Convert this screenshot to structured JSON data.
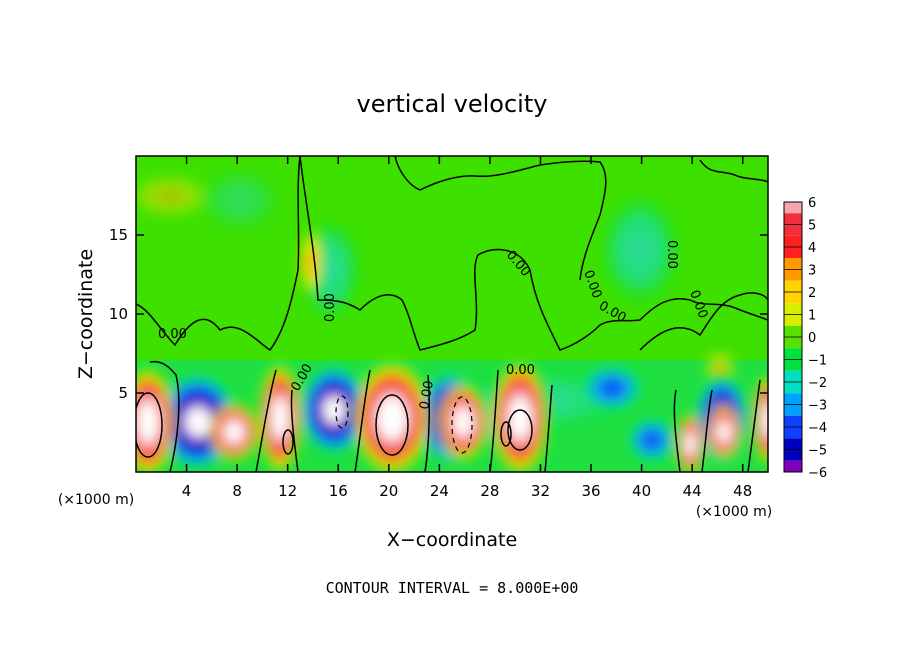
{
  "chart_data": {
    "type": "heatmap",
    "title": "vertical velocity",
    "xlabel": "X−coordinate",
    "ylabel": "Z−coordinate",
    "x_unit_left": "(×1000 m)",
    "x_unit_right": "(×1000 m)",
    "footer": "CONTOUR INTERVAL = 8.000E+00",
    "xlim": [
      0,
      50
    ],
    "ylim": [
      0,
      20
    ],
    "x_ticks": [
      4,
      8,
      12,
      16,
      20,
      24,
      28,
      32,
      36,
      40,
      44,
      48
    ],
    "x_tick_labels": [
      "4",
      "8",
      "12",
      "16",
      "20",
      "24",
      "28",
      "32",
      "36",
      "40",
      "44",
      "48"
    ],
    "y_ticks": [
      5,
      10,
      15
    ],
    "y_tick_labels": [
      "5",
      "10",
      "15"
    ],
    "contour_labels": [
      "0.00",
      "0.00",
      "0.00",
      "0.00",
      "0.00",
      "0.00",
      "0.00",
      "0.00",
      "0.00",
      "0.00"
    ],
    "colorbar": {
      "labels": [
        "6",
        "5",
        "4",
        "3",
        "2",
        "1",
        "0",
        "−1",
        "−2",
        "−3",
        "−4",
        "−5",
        "−6"
      ],
      "levels": [
        6,
        5,
        4,
        3,
        2,
        1,
        0,
        -1,
        -2,
        -3,
        -4,
        -5,
        -6
      ],
      "colors": [
        "#f4a6ac",
        "#f0303a",
        "#ff2020",
        "#ff9a00",
        "#ffd400",
        "#d8f000",
        "#58e000",
        "#00e040",
        "#00e0c0",
        "#00a0ff",
        "#1040ff",
        "#0000c0",
        "#8000c0"
      ]
    },
    "cells": [
      {
        "x": 1,
        "z": 3,
        "w": 6.2
      },
      {
        "x": 5,
        "z": 2.5,
        "w": -5.5
      },
      {
        "x": 7.5,
        "z": 2.2,
        "w": 6.0
      },
      {
        "x": 11,
        "z": 3.5,
        "w": 4.5
      },
      {
        "x": 12,
        "z": 1.5,
        "w": 5.0
      },
      {
        "x": 16,
        "z": 3.5,
        "w": -5.5
      },
      {
        "x": 20.3,
        "z": 3.4,
        "w": 6.5
      },
      {
        "x": 23.5,
        "z": 3.0,
        "w": -5.5
      },
      {
        "x": 25.8,
        "z": 2.8,
        "w": 6.0
      },
      {
        "x": 30.3,
        "z": 3.0,
        "w": 6.5
      },
      {
        "x": 28.5,
        "z": 2.5,
        "w": -3.5
      },
      {
        "x": 38,
        "z": 5,
        "w": -2.5
      },
      {
        "x": 40.5,
        "z": 1.8,
        "w": -3.5
      },
      {
        "x": 43.8,
        "z": 2.2,
        "w": 4.5
      },
      {
        "x": 46.2,
        "z": 3.0,
        "w": -5.0
      },
      {
        "x": 46.8,
        "z": 2.2,
        "w": 6.0
      },
      {
        "x": 49.8,
        "z": 3.0,
        "w": 6.0
      },
      {
        "x": 13.8,
        "z": 12.8,
        "w": 3.0
      },
      {
        "x": 15.5,
        "z": 12,
        "w": -1.5
      },
      {
        "x": 2,
        "z": 16,
        "w": 0.4
      },
      {
        "x": 40,
        "z": 15,
        "w": -1.5
      }
    ]
  }
}
